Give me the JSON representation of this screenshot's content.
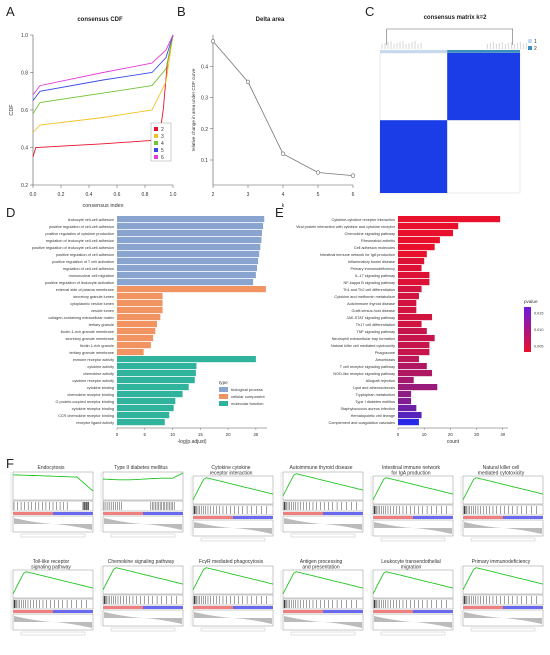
{
  "panel_letters": {
    "a": "A",
    "b": "B",
    "c": "C",
    "d": "D",
    "e": "E",
    "f": "F"
  },
  "colors": {
    "pale_blue": "#8aa4d0",
    "orange": "#f19462",
    "teal": "#2fb39c",
    "red": "#e8102a",
    "blue_matrix": "#1a3de8",
    "purple": "#6a1be0"
  },
  "chart_data": [
    {
      "type": "line",
      "panel": "A",
      "title": "consensus CDF",
      "xlabel": "consensus index",
      "ylabel": "CDF",
      "xlim": [
        0,
        1
      ],
      "ylim": [
        0.2,
        1.0
      ],
      "x_ticks": [
        "0.0",
        "0.2",
        "0.4",
        "0.6",
        "0.8",
        "1.0"
      ],
      "y_ticks": [
        "0.2",
        "0.4",
        "0.6",
        "0.8",
        "1.0"
      ],
      "legend_position": "bottom-right",
      "series": [
        {
          "name": "2",
          "color": "#e8102a",
          "points": [
            [
              0,
              0.35
            ],
            [
              0.02,
              0.4
            ],
            [
              0.5,
              0.42
            ],
            [
              0.9,
              0.44
            ],
            [
              0.93,
              0.6
            ],
            [
              0.96,
              0.85
            ],
            [
              1,
              1.0
            ]
          ]
        },
        {
          "name": "3",
          "color": "#f3c224",
          "points": [
            [
              0,
              0.48
            ],
            [
              0.05,
              0.52
            ],
            [
              0.5,
              0.56
            ],
            [
              0.85,
              0.6
            ],
            [
              0.95,
              0.75
            ],
            [
              1,
              1.0
            ]
          ]
        },
        {
          "name": "4",
          "color": "#72c434",
          "points": [
            [
              0,
              0.58
            ],
            [
              0.05,
              0.64
            ],
            [
              0.5,
              0.69
            ],
            [
              0.85,
              0.73
            ],
            [
              0.95,
              0.82
            ],
            [
              1,
              1.0
            ]
          ]
        },
        {
          "name": "5",
          "color": "#3b4be8",
          "points": [
            [
              0,
              0.65
            ],
            [
              0.05,
              0.7
            ],
            [
              0.5,
              0.76
            ],
            [
              0.85,
              0.8
            ],
            [
              0.95,
              0.88
            ],
            [
              1,
              1.0
            ]
          ]
        },
        {
          "name": "6",
          "color": "#e43bd8",
          "points": [
            [
              0,
              0.68
            ],
            [
              0.05,
              0.73
            ],
            [
              0.5,
              0.8
            ],
            [
              0.85,
              0.85
            ],
            [
              0.95,
              0.92
            ],
            [
              1,
              1.0
            ]
          ]
        }
      ]
    },
    {
      "type": "line",
      "panel": "B",
      "title": "Delta area",
      "xlabel": "k",
      "ylabel": "relative change in area under CDF curve",
      "categories": [
        "2",
        "3",
        "4",
        "5",
        "6"
      ],
      "values": [
        0.48,
        0.35,
        0.12,
        0.06,
        0.05
      ],
      "xlim": [
        2,
        6
      ],
      "ylim": [
        0.02,
        0.5
      ],
      "y_ticks": [
        "0.1",
        "0.2",
        "0.3",
        "0.4"
      ]
    },
    {
      "type": "heatmap",
      "panel": "C",
      "title": "consensus matrix k=2",
      "legend": [
        "1",
        "2"
      ],
      "cluster_fractions": [
        0.48,
        0.52
      ]
    },
    {
      "type": "bar",
      "panel": "D",
      "orientation": "horizontal",
      "xlabel": "-log(p.adjust)",
      "x_ticks": [
        "0",
        "5",
        "10",
        "15",
        "20",
        "25"
      ],
      "xlim": [
        0,
        27
      ],
      "legend_title": "type",
      "legend": [
        {
          "name": "biological process",
          "color": "#8aa4d0"
        },
        {
          "name": "cellular component",
          "color": "#f19462"
        },
        {
          "name": "molecular function",
          "color": "#2fb39c"
        }
      ],
      "categories": [
        "leukocyte cell-cell adhesion",
        "positive regulation of cell-cell adhesion",
        "positive regulation of cytokine production",
        "regulation of leukocyte cell-cell adhesion",
        "positive regulation of leukocyte cell-cell adhesion",
        "positive regulation of cell adhesion",
        "positive regulation of T cell activation",
        "regulation of cell-cell adhesion",
        "mononuclear cell migration",
        "positive regulation of leukocyte activation",
        "external side of plasma membrane",
        "secretory granule lumen",
        "cytoplasmic vesicle lumen",
        "vesicle lumen",
        "collagen-containing extracellular matrix",
        "tertiary granule",
        "ficolin-1-rich granule membrane",
        "secretory granule membrane",
        "ficolin-1-rich granule",
        "tertiary granule membrane",
        "immune receptor activity",
        "cytokine activity",
        "chemokine activity",
        "cytokine receptor activity",
        "cytokine binding",
        "chemokine receptor binding",
        "G protein-coupled receptor binding",
        "cytokine receptor binding",
        "CCR chemokine receptor binding",
        "receptor ligand activity"
      ],
      "values": [
        26.5,
        26.3,
        26.1,
        26.0,
        25.8,
        25.6,
        25.4,
        25.2,
        25.0,
        24.5,
        26.8,
        8.2,
        8.2,
        8.2,
        7.8,
        7.2,
        6.9,
        6.5,
        6.1,
        4.8,
        25.0,
        14.3,
        14.2,
        14.0,
        12.9,
        11.8,
        10.5,
        10.2,
        9.4,
        8.6
      ],
      "groups": [
        "biological process",
        "biological process",
        "biological process",
        "biological process",
        "biological process",
        "biological process",
        "biological process",
        "biological process",
        "biological process",
        "biological process",
        "cellular component",
        "cellular component",
        "cellular component",
        "cellular component",
        "cellular component",
        "cellular component",
        "cellular component",
        "cellular component",
        "cellular component",
        "cellular component",
        "molecular function",
        "molecular function",
        "molecular function",
        "molecular function",
        "molecular function",
        "molecular function",
        "molecular function",
        "molecular function",
        "molecular function",
        "molecular function"
      ]
    },
    {
      "type": "bar",
      "panel": "E",
      "orientation": "horizontal",
      "xlabel": "count",
      "x_ticks": [
        "0",
        "10",
        "20",
        "30",
        "40"
      ],
      "xlim": [
        0,
        42
      ],
      "legend_title": "pvalue",
      "legend_ticks": [
        "0.015",
        "0.010",
        "0.005"
      ],
      "categories": [
        "Cytokine-cytokine receptor interaction",
        "Viral protein interaction with cytokine and cytokine receptor",
        "Chemokine signaling pathway",
        "Rheumatoid arthritis",
        "Cell adhesion molecules",
        "Intestinal immune network for IgA production",
        "Inflammatory bowel disease",
        "Primary immunodeficiency",
        "IL-17 signaling pathway",
        "NF-kappa B signaling pathway",
        "Th1 and Th2 cell differentiation",
        "Cytokine and metformin metabolism",
        "Autoimmune thyroid disease",
        "Graft-versus-host disease",
        "JAK-STAT signaling pathway",
        "Th17 cell differentiation",
        "TNF signaling pathway",
        "Neutrophil extracellular trap formation",
        "Natural killer cell mediated cytotoxicity",
        "Phagosome",
        "Amoebiasis",
        "T cell receptor signaling pathway",
        "NOD-like receptor signaling pathway",
        "Allograft rejection",
        "Lipid and atherosclerosis",
        "Tryptophan metabolism",
        "Type I diabetes mellitus",
        "Staphylococcus aureus infection",
        "Hematopoietic cell lineage",
        "Complement and coagulation cascades"
      ],
      "values": [
        39,
        23,
        21,
        16,
        14,
        11,
        10,
        9,
        12,
        12,
        9,
        8,
        7,
        7,
        13,
        9,
        11,
        14,
        12,
        12,
        8,
        11,
        13,
        6,
        15,
        5,
        5,
        7,
        9,
        8
      ],
      "pvalues": [
        0.001,
        0.001,
        0.001,
        0.001,
        0.001,
        0.001,
        0.002,
        0.002,
        0.002,
        0.002,
        0.003,
        0.003,
        0.003,
        0.003,
        0.003,
        0.003,
        0.004,
        0.004,
        0.004,
        0.004,
        0.005,
        0.006,
        0.006,
        0.007,
        0.008,
        0.009,
        0.01,
        0.012,
        0.014,
        0.018
      ]
    }
  ],
  "gsea": {
    "panel": "F",
    "plots": [
      {
        "title": "Endocytosis",
        "curve": "down-then-up"
      },
      {
        "title": "Type II diabetes mellitus",
        "curve": "late-up"
      },
      {
        "title": "Cytokine cytokine receptor interaction",
        "curve": "up"
      },
      {
        "title": "Autoimmune thyroid disease",
        "curve": "up"
      },
      {
        "title": "Intestinal immune network for IgA production",
        "curve": "up"
      },
      {
        "title": "Natural killer cell mediated cytotoxicity",
        "curve": "up"
      },
      {
        "title": "Toll-like receptor signaling pathway",
        "curve": "up"
      },
      {
        "title": "Chemokine signaling pathway",
        "curve": "up"
      },
      {
        "title": "FcγR mediated phagocytosis",
        "curve": "up"
      },
      {
        "title": "Antigen processing and presentation",
        "curve": "up"
      },
      {
        "title": "Leukocyte transendothelial migration",
        "curve": "up"
      },
      {
        "title": "Primary immunodeficiency",
        "curve": "up"
      }
    ]
  }
}
